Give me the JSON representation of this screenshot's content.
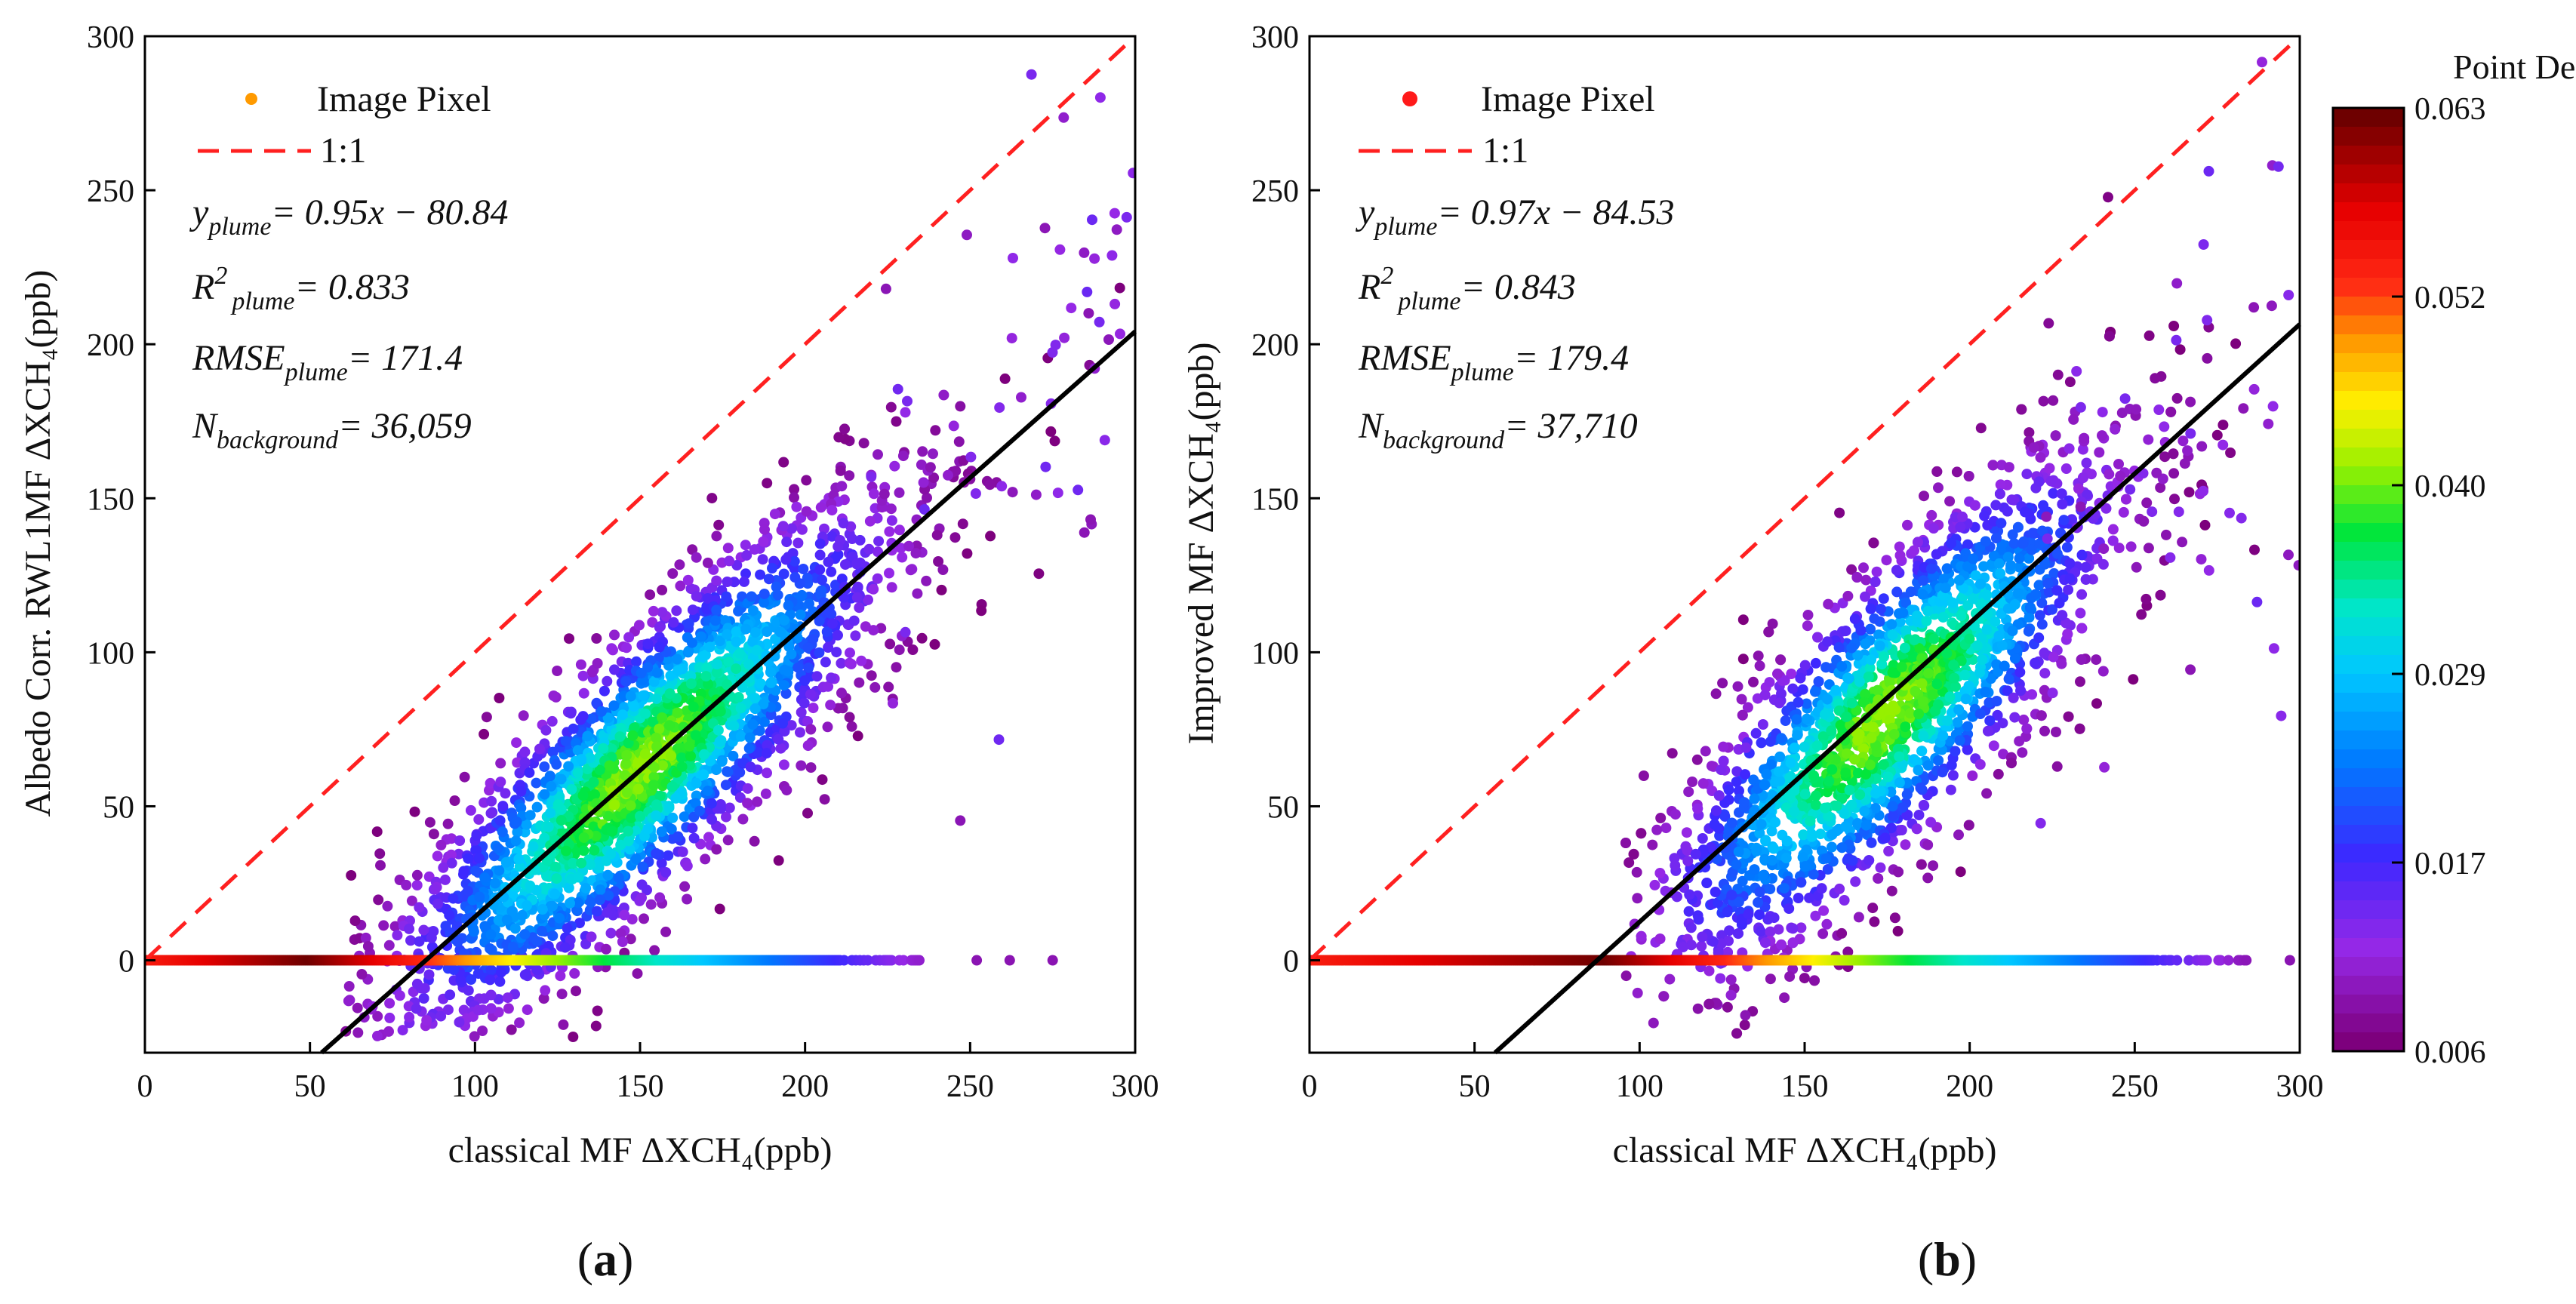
{
  "colors": {
    "diagonal": "#ff2020",
    "fit_line": "#000000",
    "axis": "#000000",
    "legend_marker_a": "#ff9a00",
    "legend_marker_b": "#ff1a1a"
  },
  "chart_data": [
    {
      "type": "scatter",
      "panel_label": "a",
      "xlabel": "classical MF ΔXCH₄(ppb)",
      "ylabel": "Albedo Corr. RWL1MF ΔXCH₄(ppb)",
      "xlim": [
        0,
        300
      ],
      "ylim": [
        -30,
        300
      ],
      "xticks": [
        0,
        50,
        100,
        150,
        200,
        250,
        300
      ],
      "yticks": [
        0,
        50,
        100,
        150,
        200,
        250,
        300
      ],
      "legend": [
        "Image Pixel",
        "1:1"
      ],
      "fit": {
        "slope": 0.95,
        "intercept": -80.84
      },
      "stats": {
        "eq": "y",
        "eq_sub": "plume",
        "eq_rhs": "= 0.95x − 80.84",
        "r2": "R",
        "r2_sub": "plume",
        "r2_rhs": "= 0.833",
        "rmse": "RMSE",
        "rmse_sub": "plume",
        "rmse_rhs": "= 171.4",
        "n": "N",
        "n_sub": "background",
        "n_rhs": "=  36,059"
      },
      "cloud": {
        "x_center": 150,
        "y_center": 62,
        "x_spread": 38,
        "y_spread": 30,
        "slope": 0.95,
        "x_min": 60,
        "x_max": 300
      },
      "zero_band": {
        "x_start": 0,
        "x_end": 240,
        "dark_center": 50
      }
    },
    {
      "type": "scatter",
      "panel_label": "b",
      "xlabel": "classical MF ΔXCH₄(ppb)",
      "ylabel": "Improved MF ΔXCH₄(ppb)",
      "xlim": [
        0,
        300
      ],
      "ylim": [
        -30,
        300
      ],
      "xticks": [
        0,
        50,
        100,
        150,
        200,
        250,
        300
      ],
      "yticks": [
        0,
        50,
        100,
        150,
        200,
        250,
        300
      ],
      "legend": [
        "Image Pixel",
        "1:1"
      ],
      "fit": {
        "slope": 0.97,
        "intercept": -84.53
      },
      "stats": {
        "eq": "y",
        "eq_sub": "plume",
        "eq_rhs": "= 0.97x − 84.53",
        "r2": "R",
        "r2_sub": "plume",
        "r2_rhs": "= 0.843",
        "rmse": "RMSE",
        "rmse_sub": "plume",
        "rmse_rhs": "= 179.4",
        "n": "N",
        "n_sub": "background",
        "n_rhs": "=  37,710"
      },
      "cloud": {
        "x_center": 175,
        "y_center": 80,
        "x_spread": 35,
        "y_spread": 32,
        "slope": 0.97,
        "x_min": 95,
        "x_max": 300
      },
      "zero_band": {
        "x_start": 0,
        "x_end": 285,
        "dark_center": 90
      }
    }
  ],
  "colorbar": {
    "title": "Point Density",
    "ticks": [
      "0.063",
      "0.052",
      "0.040",
      "0.029",
      "0.017",
      "0.006"
    ],
    "min": 0.006,
    "max": 0.063
  }
}
